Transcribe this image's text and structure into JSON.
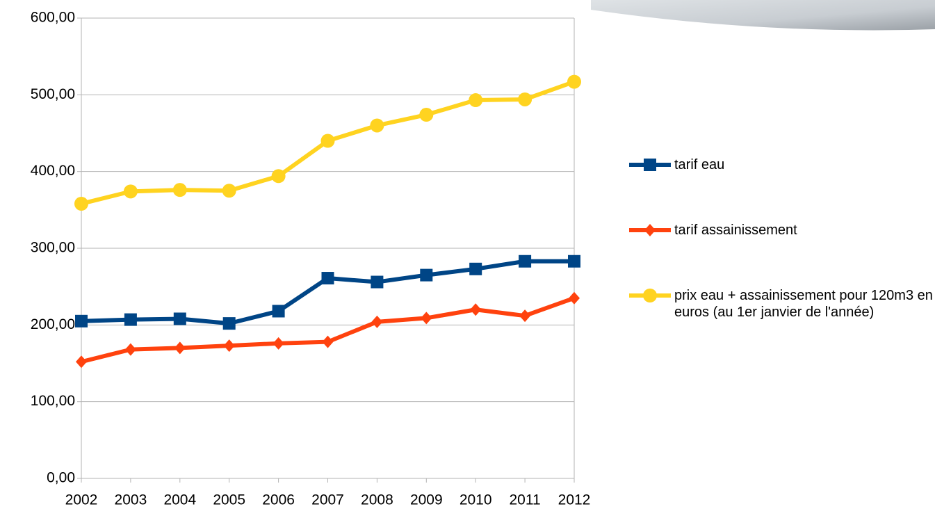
{
  "chart_data": {
    "type": "line",
    "categories": [
      "2002",
      "2003",
      "2004",
      "2005",
      "2006",
      "2007",
      "2008",
      "2009",
      "2010",
      "2011",
      "2012"
    ],
    "series": [
      {
        "name": "tarif eau",
        "color": "#004586",
        "marker": "square",
        "values": [
          205,
          207,
          208,
          202,
          218,
          261,
          256,
          265,
          273,
          283,
          283
        ]
      },
      {
        "name": "tarif assainissement",
        "color": "#ff420e",
        "marker": "diamond",
        "values": [
          152,
          168,
          170,
          173,
          176,
          178,
          204,
          209,
          220,
          212,
          235
        ]
      },
      {
        "name": "prix eau + assainissement pour 120m3 en euros (au 1er janvier de l'année)",
        "color": "#ffd320",
        "marker": "circle",
        "values": [
          358,
          374,
          376,
          375,
          394,
          440,
          460,
          474,
          493,
          494,
          517
        ]
      }
    ],
    "ylim": [
      0,
      600
    ],
    "yticks": [
      {
        "value": 0,
        "label": "0,00"
      },
      {
        "value": 100,
        "label": "100,00"
      },
      {
        "value": 200,
        "label": "200,00"
      },
      {
        "value": 300,
        "label": "300,00"
      },
      {
        "value": 400,
        "label": "400,00"
      },
      {
        "value": 500,
        "label": "500,00"
      },
      {
        "value": 600,
        "label": "600,00"
      }
    ],
    "grid": true,
    "legend": "right"
  }
}
